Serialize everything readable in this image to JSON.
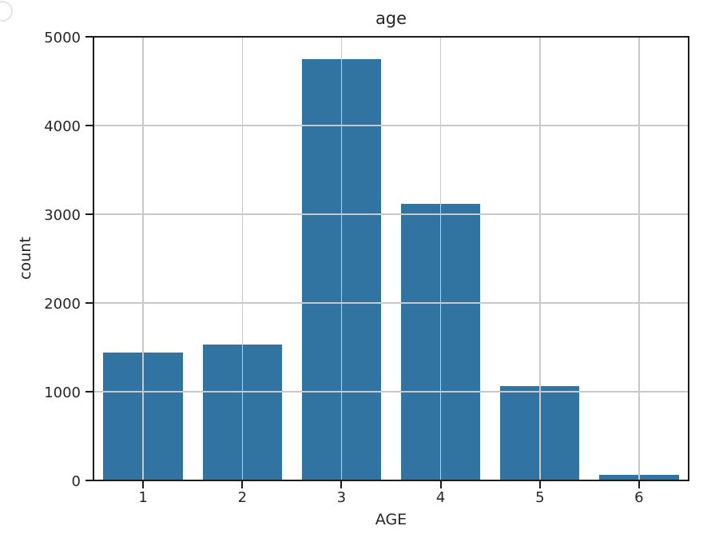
{
  "figure": {
    "background_color": "#ffffff",
    "decoration": {
      "corner_arc_color": "#e4e4e4"
    }
  },
  "chart_data": {
    "type": "bar",
    "title": "age",
    "xlabel": "AGE",
    "ylabel": "count",
    "categories": [
      "1",
      "2",
      "3",
      "4",
      "5",
      "6"
    ],
    "values": [
      1440,
      1535,
      4745,
      3120,
      1060,
      65
    ],
    "ylim": [
      0,
      5000
    ],
    "y_ticks": [
      0,
      1000,
      2000,
      3000,
      4000,
      5000
    ],
    "grid": "both-axes, gridlines drawn above bars",
    "legend": "none",
    "bar_color": "#3274a1",
    "grid_color": "#c9c9c9",
    "spine_color": "#1c1c1c",
    "text_color": "#262626"
  }
}
